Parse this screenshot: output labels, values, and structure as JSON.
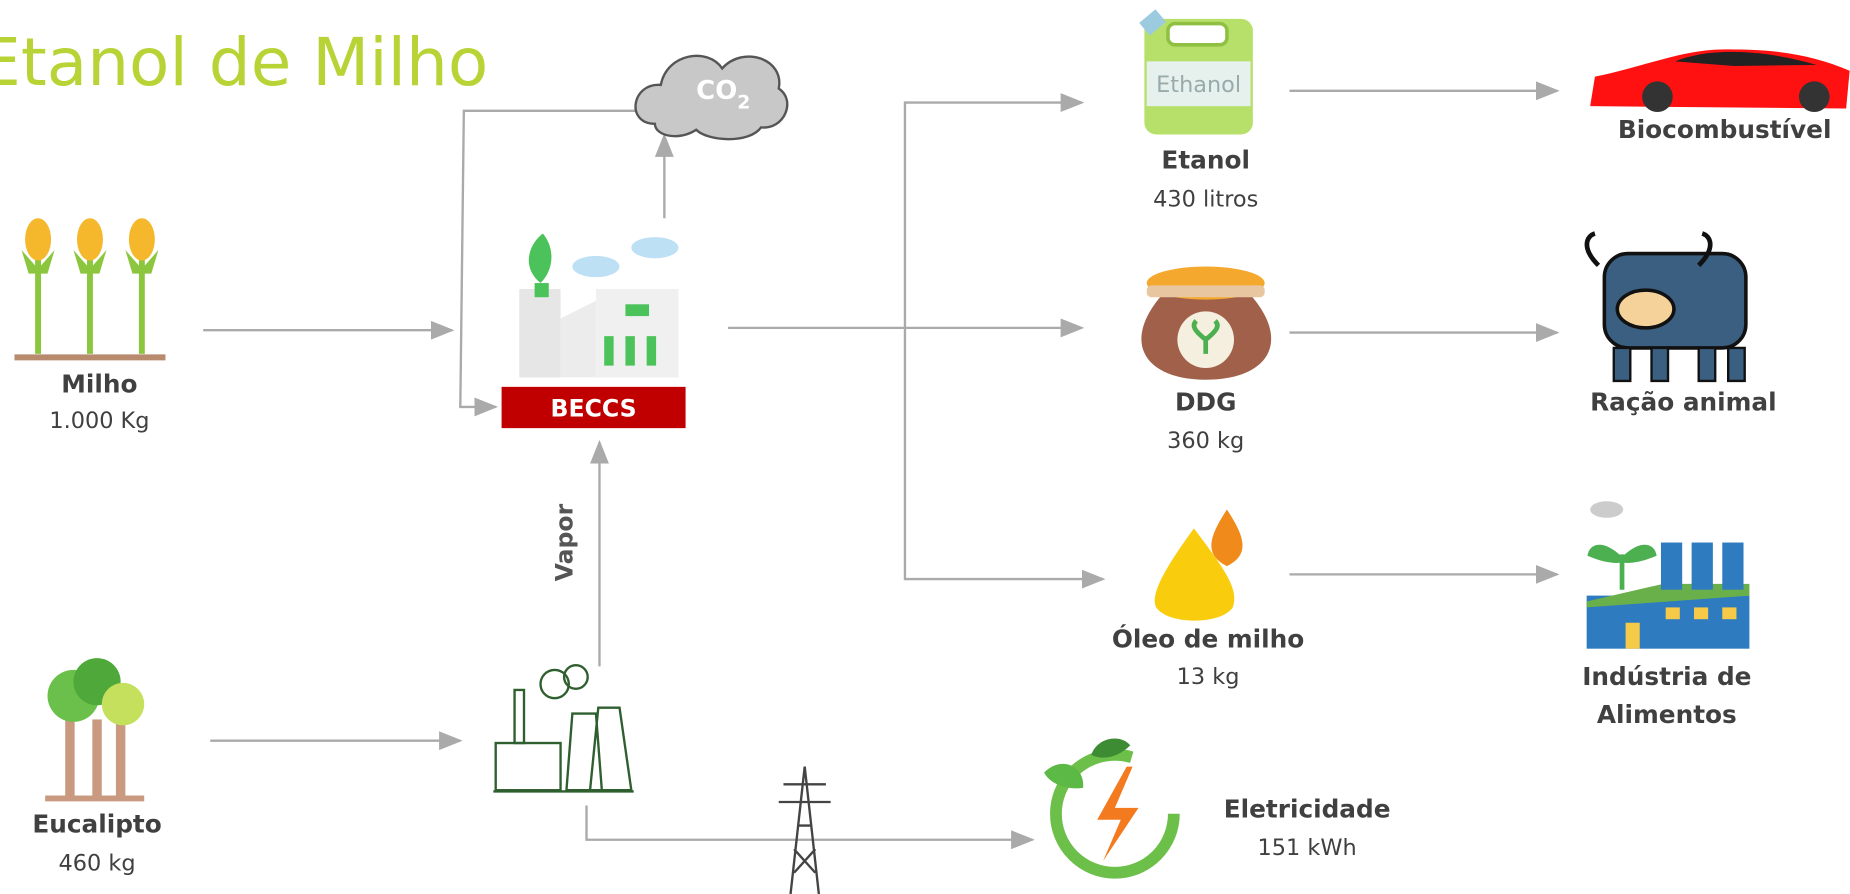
{
  "header": {
    "title": "Etanol de Milho"
  },
  "co2": {
    "text": "CO",
    "subscript": "2"
  },
  "beccs": {
    "label": "BECCS"
  },
  "vapor": {
    "label": "Vapor"
  },
  "inputs": [
    {
      "label": "Milho",
      "amount": "1.000 Kg"
    },
    {
      "label": "Eucalipto",
      "amount": "460 kg"
    }
  ],
  "products": [
    {
      "label": "Etanol",
      "amount": "430 litros",
      "icon_text": "Ethanol"
    },
    {
      "label": "DDG",
      "amount": "360 kg"
    },
    {
      "label": "Óleo de milho",
      "amount": "13 kg"
    },
    {
      "label": "Eletricidade",
      "amount": "151 kWh"
    }
  ],
  "uses": [
    {
      "label": "Biocombustível"
    },
    {
      "label": "Ração animal"
    },
    {
      "lines": [
        "Indústria de",
        "Alimentos"
      ]
    }
  ]
}
